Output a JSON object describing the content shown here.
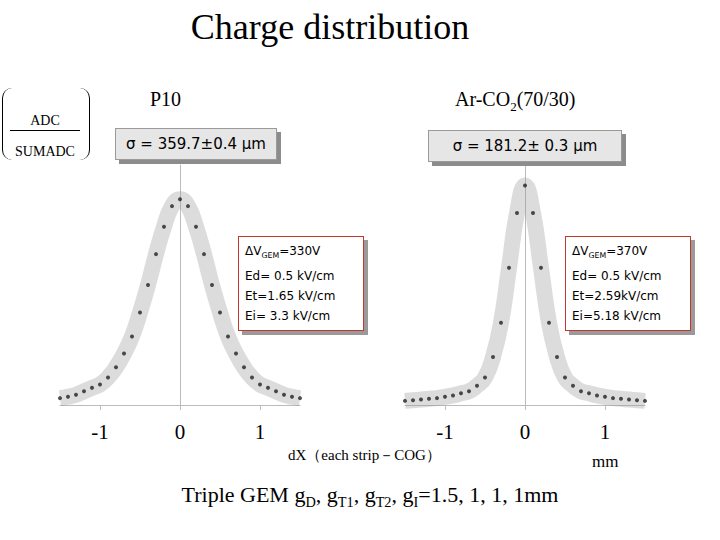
{
  "page": {
    "title": "Charge distribution",
    "y_label": {
      "numerator": "ADC",
      "denominator": "SUMADC"
    },
    "x_label": "dX（each strip－COG）",
    "x_unit": "mm",
    "footer": [
      {
        "text": "Triple GEM   g"
      },
      {
        "sub": "D"
      },
      {
        "text": ", g"
      },
      {
        "sub": "T1"
      },
      {
        "text": ", g"
      },
      {
        "sub": "T2"
      },
      {
        "text": ", g"
      },
      {
        "sub": "I"
      },
      {
        "text": "=1.5, 1, 1, 1mm"
      }
    ]
  },
  "chart_data": [
    {
      "type": "scatter",
      "title": [
        {
          "text": "P10"
        }
      ],
      "sigma": "σ = 359.7±0.4 μm",
      "parameters": [
        [
          {
            "text": "ΔV"
          },
          {
            "sub": "GEM"
          },
          {
            "text": "=330V"
          }
        ],
        [
          {
            "text": "Ed= 0.5 kV/cm"
          }
        ],
        [
          {
            "text": "Et=1.65 kV/cm"
          }
        ],
        [
          {
            "text": "Ei= 3.3 kV/cm"
          }
        ]
      ],
      "x": [
        -1.5,
        -1.4,
        -1.3,
        -1.2,
        -1.1,
        -1.0,
        -0.9,
        -0.8,
        -0.7,
        -0.6,
        -0.5,
        -0.4,
        -0.3,
        -0.2,
        -0.1,
        0.0,
        0.1,
        0.2,
        0.3,
        0.4,
        0.5,
        0.6,
        0.7,
        0.8,
        0.9,
        1.0,
        1.1,
        1.2,
        1.3,
        1.4,
        1.5
      ],
      "values": [
        0.01,
        0.012,
        0.015,
        0.02,
        0.025,
        0.03,
        0.04,
        0.055,
        0.075,
        0.1,
        0.135,
        0.175,
        0.22,
        0.26,
        0.29,
        0.3,
        0.29,
        0.26,
        0.22,
        0.175,
        0.135,
        0.1,
        0.075,
        0.055,
        0.04,
        0.03,
        0.025,
        0.02,
        0.015,
        0.012,
        0.01
      ],
      "color": "#222222",
      "marker": "circle",
      "xlim": [
        -1.5,
        1.5
      ],
      "xticks": [
        -1,
        0,
        1
      ],
      "ylim": [
        0,
        0.35
      ],
      "tick_labels": "x",
      "grid": false
    },
    {
      "type": "scatter",
      "title": [
        {
          "text": "Ar-CO"
        },
        {
          "sub": "2"
        },
        {
          "text": "(70/30)"
        }
      ],
      "sigma": "σ = 181.2± 0.3 μm",
      "parameters": [
        [
          {
            "text": "ΔV"
          },
          {
            "sub": "GEM"
          },
          {
            "text": "=370V"
          }
        ],
        [
          {
            "text": "Ed= 0.5 kV/cm"
          }
        ],
        [
          {
            "text": "Et=2.59kV/cm"
          }
        ],
        [
          {
            "text": "Ei=5.18 kV/cm"
          }
        ]
      ],
      "x": [
        -1.5,
        -1.4,
        -1.3,
        -1.2,
        -1.1,
        -1.0,
        -0.9,
        -0.8,
        -0.7,
        -0.6,
        -0.5,
        -0.4,
        -0.3,
        -0.2,
        -0.1,
        0.0,
        0.1,
        0.2,
        0.3,
        0.4,
        0.5,
        0.6,
        0.7,
        0.8,
        0.9,
        1.0,
        1.1,
        1.2,
        1.3,
        1.4,
        1.5
      ],
      "values": [
        0.006,
        0.007,
        0.008,
        0.009,
        0.01,
        0.012,
        0.014,
        0.017,
        0.02,
        0.028,
        0.04,
        0.07,
        0.12,
        0.2,
        0.28,
        0.32,
        0.28,
        0.2,
        0.12,
        0.07,
        0.04,
        0.028,
        0.02,
        0.017,
        0.014,
        0.012,
        0.01,
        0.009,
        0.008,
        0.007,
        0.006
      ],
      "color": "#222222",
      "marker": "circle",
      "xlim": [
        -1.5,
        1.5
      ],
      "xticks": [
        -1,
        0,
        1
      ],
      "ylim": [
        0,
        0.35
      ],
      "tick_labels": "x",
      "grid": false
    }
  ]
}
